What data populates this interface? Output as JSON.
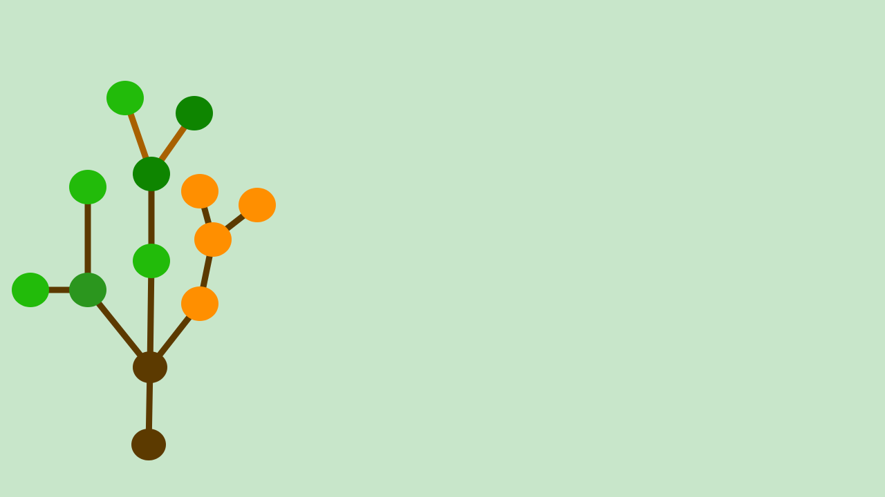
{
  "scene": {
    "background": "#C8E6CA",
    "colors": {
      "branch_dark": "#5C3A00",
      "branch_light": "#A86000",
      "trunk_node": "#5C3A00",
      "leaf_bright": "#22BB0A",
      "leaf_dark": "#0E8500",
      "leaf_mid": "#2B961E",
      "fruit_orange": "#FF8F00"
    },
    "nodes": [
      {
        "id": "root",
        "role": "trunk",
        "color": "trunk_node"
      },
      {
        "id": "junction",
        "role": "trunk",
        "color": "trunk_node"
      },
      {
        "id": "left-hub",
        "role": "leaf",
        "color": "leaf_mid"
      },
      {
        "id": "left-tip",
        "role": "leaf",
        "color": "leaf_bright"
      },
      {
        "id": "left-upper",
        "role": "leaf",
        "color": "leaf_bright"
      },
      {
        "id": "center-mid",
        "role": "leaf",
        "color": "leaf_bright"
      },
      {
        "id": "center-top",
        "role": "leaf",
        "color": "leaf_dark"
      },
      {
        "id": "top-left",
        "role": "leaf",
        "color": "leaf_bright"
      },
      {
        "id": "top-right",
        "role": "leaf",
        "color": "leaf_dark"
      },
      {
        "id": "fruit-low",
        "role": "fruit",
        "color": "fruit_orange"
      },
      {
        "id": "fruit-mid",
        "role": "fruit",
        "color": "fruit_orange"
      },
      {
        "id": "fruit-upper-left",
        "role": "fruit",
        "color": "fruit_orange"
      },
      {
        "id": "fruit-upper-right",
        "role": "fruit",
        "color": "fruit_orange"
      }
    ],
    "edges": [
      {
        "from": "root",
        "to": "junction",
        "color": "branch_dark"
      },
      {
        "from": "junction",
        "to": "left-hub",
        "color": "branch_dark"
      },
      {
        "from": "left-hub",
        "to": "left-tip",
        "color": "branch_dark"
      },
      {
        "from": "left-hub",
        "to": "left-upper",
        "color": "branch_dark"
      },
      {
        "from": "junction",
        "to": "center-mid",
        "color": "branch_dark"
      },
      {
        "from": "center-mid",
        "to": "center-top",
        "color": "branch_dark"
      },
      {
        "from": "center-top",
        "to": "top-left",
        "color": "branch_light"
      },
      {
        "from": "center-top",
        "to": "top-right",
        "color": "branch_light"
      },
      {
        "from": "junction",
        "to": "fruit-low",
        "color": "branch_dark"
      },
      {
        "from": "fruit-low",
        "to": "fruit-mid",
        "color": "branch_dark"
      },
      {
        "from": "fruit-mid",
        "to": "fruit-upper-left",
        "color": "branch_dark"
      },
      {
        "from": "fruit-mid",
        "to": "fruit-upper-right",
        "color": "branch_dark"
      }
    ]
  }
}
